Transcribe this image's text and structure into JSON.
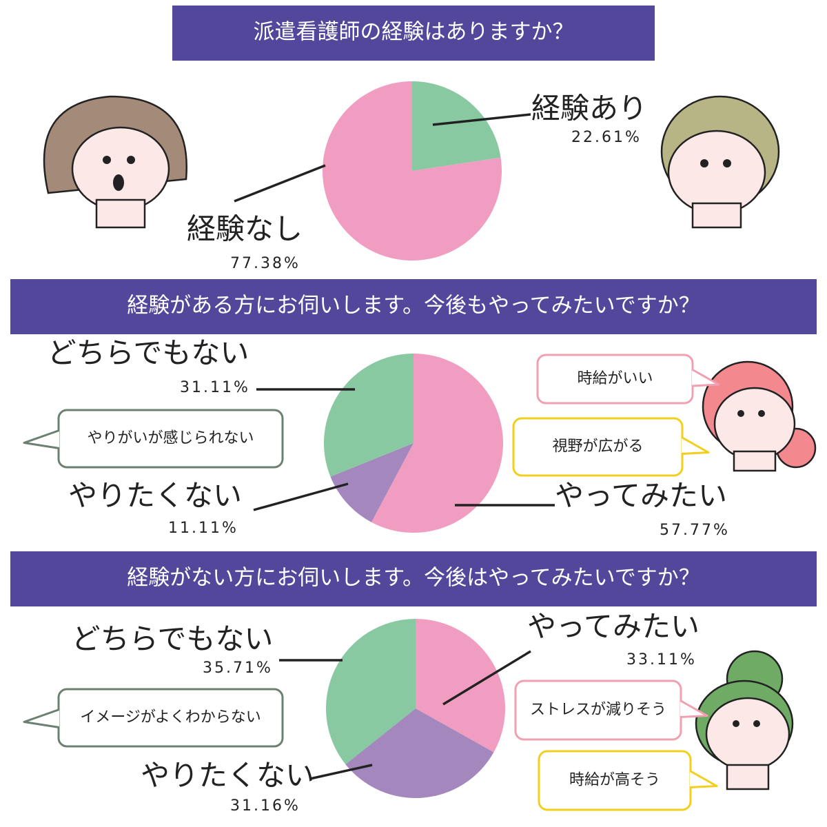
{
  "chart_data": [
    {
      "type": "pie",
      "title": "派遣看護師の経験はありますか？",
      "categories": [
        "経験あり",
        "経験なし"
      ],
      "values": [
        22.61,
        77.38
      ],
      "value_labels": [
        "22.61%",
        "77.38%"
      ],
      "colors": [
        "#88c9a1",
        "#f19dc2"
      ]
    },
    {
      "type": "pie",
      "title": "経験がある方にお伺いします。今後もやってみたいですか？",
      "categories": [
        "やってみたい",
        "やりたくない",
        "どちらでもない"
      ],
      "values": [
        57.77,
        11.11,
        31.11
      ],
      "value_labels": [
        "57.77%",
        "11.11%",
        "31.11%"
      ],
      "colors": [
        "#f19dc2",
        "#a488bd",
        "#88c9a1"
      ],
      "annotations": [
        "時給がいい",
        "視野が広がる",
        "やりがいが感じられない"
      ]
    },
    {
      "type": "pie",
      "title": "経験がない方にお伺いします。今後はやってみたいですか？",
      "categories": [
        "やってみたい",
        "やりたくない",
        "どちらでもない"
      ],
      "values": [
        33.11,
        31.16,
        35.71
      ],
      "value_labels": [
        "33.11%",
        "31.16%",
        "35.71%"
      ],
      "colors": [
        "#f19dc2",
        "#a488bd",
        "#88c9a1"
      ],
      "annotations": [
        "ストレスが減りそう",
        "時給が高そう",
        "イメージがよくわからない"
      ]
    }
  ]
}
